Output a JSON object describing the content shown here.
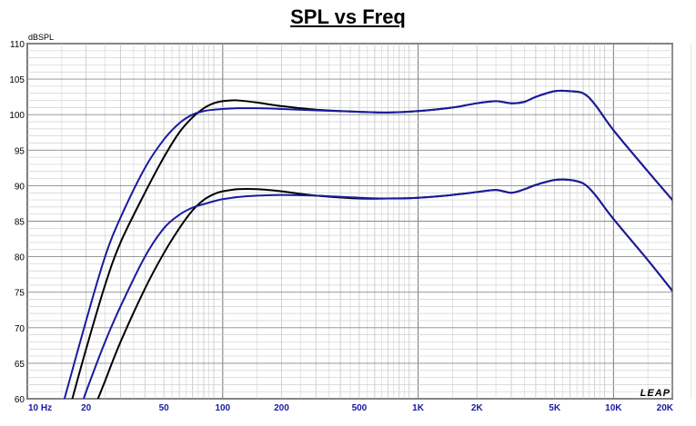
{
  "chart_data": {
    "type": "line",
    "title": "SPL vs Freq",
    "ylabel": "dBSPL",
    "xlabel": "",
    "x_scale": "log",
    "xlim": [
      10,
      20000
    ],
    "ylim": [
      60,
      110
    ],
    "grid": true,
    "x_tick_labels": [
      {
        "value": 10,
        "label": "10 Hz"
      },
      {
        "value": 20,
        "label": "20"
      },
      {
        "value": 50,
        "label": "50"
      },
      {
        "value": 100,
        "label": "100"
      },
      {
        "value": 200,
        "label": "200"
      },
      {
        "value": 500,
        "label": "500"
      },
      {
        "value": 1000,
        "label": "1K"
      },
      {
        "value": 2000,
        "label": "2K"
      },
      {
        "value": 5000,
        "label": "5K"
      },
      {
        "value": 10000,
        "label": "10K"
      },
      {
        "value": 20000,
        "label": "20K"
      }
    ],
    "y_tick_labels": [
      "60",
      "65",
      "70",
      "75",
      "80",
      "85",
      "90",
      "95",
      "100",
      "105",
      "110"
    ],
    "series": [
      {
        "color": "#000000",
        "x": [
          17,
          20,
          25,
          30,
          40,
          50,
          60,
          70,
          80,
          90,
          100,
          110,
          120,
          150,
          200,
          300,
          500,
          700,
          1000,
          1500,
          2000,
          2500,
          3000,
          3500,
          4000,
          5000,
          6000,
          7000,
          8000,
          10000,
          15000,
          20000
        ],
        "values": [
          60,
          67,
          76,
          82,
          89,
          94,
          97.5,
          99.6,
          100.9,
          101.6,
          101.9,
          102.0,
          102.0,
          101.7,
          101.2,
          100.7,
          100.4,
          100.3,
          100.5,
          101.0,
          101.6,
          101.9,
          101.6,
          101.8,
          102.5,
          103.3,
          103.3,
          103.0,
          101.5,
          97.8,
          92.0,
          88.0
        ]
      },
      {
        "color": "#1a1aa0",
        "x": [
          15.5,
          20,
          25,
          30,
          40,
          50,
          60,
          70,
          80,
          90,
          100,
          120,
          150,
          200,
          300,
          500,
          700,
          1000,
          1500,
          2000,
          2500,
          3000,
          3500,
          4000,
          5000,
          6000,
          7000,
          8000,
          10000,
          15000,
          20000
        ],
        "values": [
          60,
          71,
          80,
          85.5,
          92.5,
          96.5,
          98.8,
          100.0,
          100.5,
          100.7,
          100.8,
          100.9,
          100.9,
          100.8,
          100.6,
          100.4,
          100.3,
          100.5,
          101.0,
          101.6,
          101.9,
          101.6,
          101.8,
          102.5,
          103.3,
          103.3,
          103.0,
          101.5,
          97.8,
          92.0,
          88.0
        ]
      },
      {
        "color": "#000000",
        "x": [
          23,
          25,
          30,
          40,
          50,
          60,
          70,
          80,
          90,
          100,
          120,
          150,
          200,
          300,
          500,
          700,
          1000,
          1500,
          2000,
          2500,
          3000,
          3500,
          4000,
          5000,
          6000,
          7000,
          8000,
          10000,
          15000,
          20000
        ],
        "values": [
          60,
          62.5,
          68,
          75.5,
          80.5,
          84,
          86.5,
          88,
          88.8,
          89.2,
          89.5,
          89.5,
          89.2,
          88.6,
          88.2,
          88.2,
          88.3,
          88.7,
          89.1,
          89.4,
          89.0,
          89.5,
          90.1,
          90.8,
          90.8,
          90.3,
          88.8,
          85.3,
          79.5,
          75.2
        ]
      },
      {
        "color": "#1a1aa0",
        "x": [
          19.5,
          20,
          25,
          30,
          40,
          50,
          60,
          70,
          80,
          90,
          100,
          120,
          150,
          200,
          300,
          500,
          700,
          1000,
          1500,
          2000,
          2500,
          3000,
          3500,
          4000,
          5000,
          6000,
          7000,
          8000,
          10000,
          15000,
          20000
        ],
        "values": [
          60,
          61,
          68,
          73,
          80,
          84,
          85.9,
          86.9,
          87.4,
          87.8,
          88.1,
          88.4,
          88.6,
          88.7,
          88.6,
          88.3,
          88.2,
          88.3,
          88.7,
          89.1,
          89.4,
          89.0,
          89.5,
          90.1,
          90.8,
          90.8,
          90.3,
          88.8,
          85.3,
          79.5,
          75.2
        ]
      }
    ],
    "watermark": "LEAP"
  }
}
